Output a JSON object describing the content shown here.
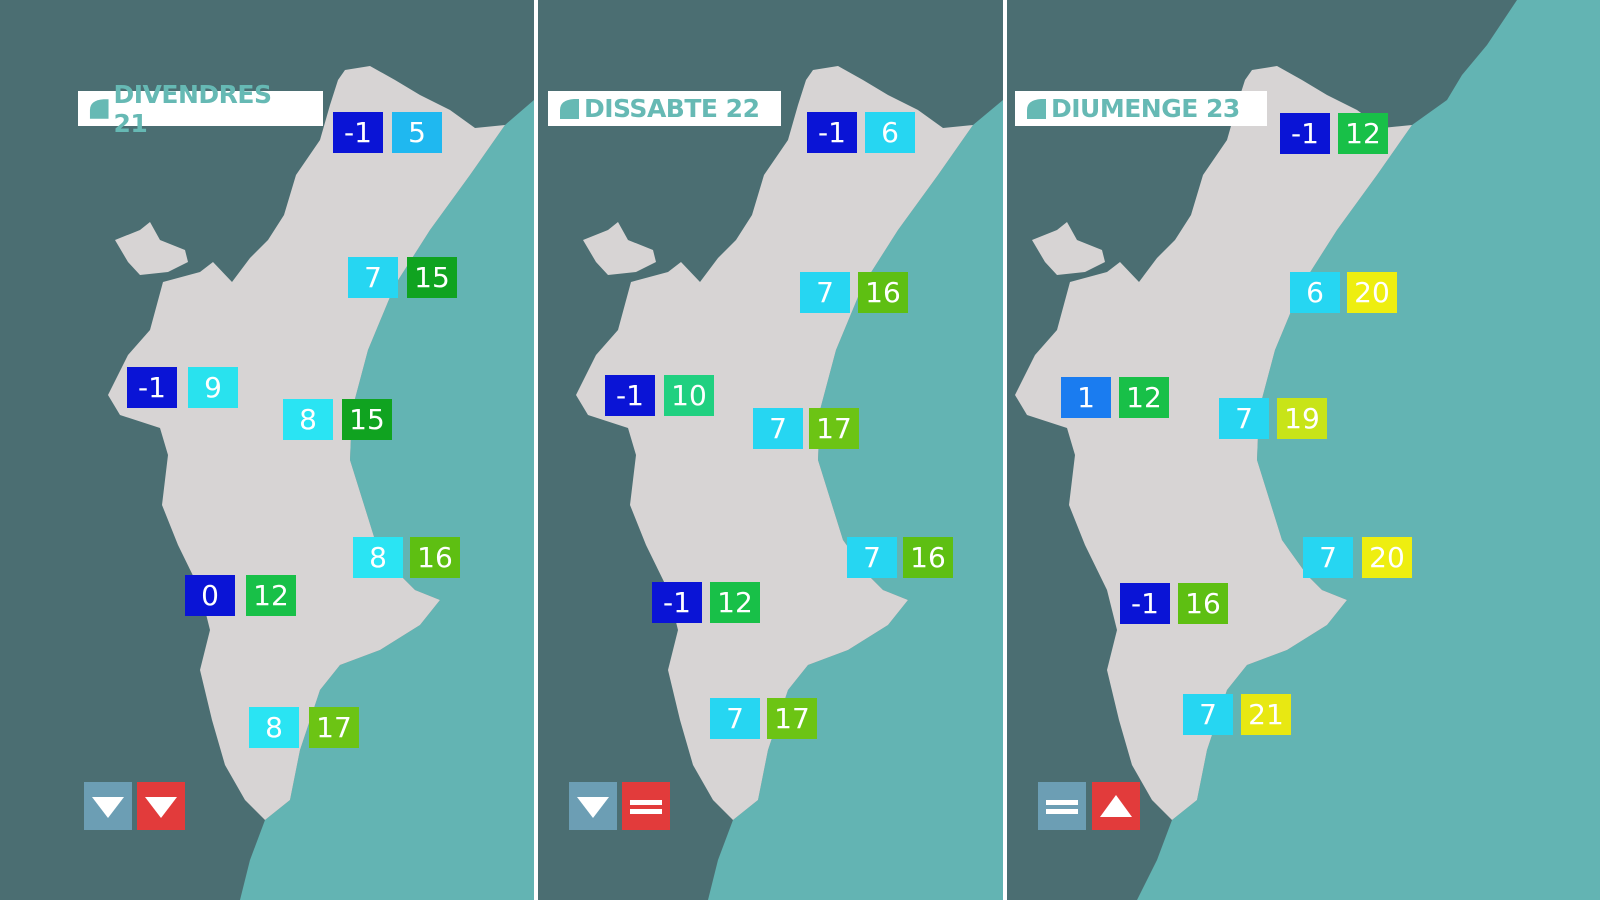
{
  "days": [
    {
      "label": "DIVENDRES 21",
      "trend_min": "down",
      "trend_max": "down",
      "stations": [
        {
          "min": "-1",
          "max": "5",
          "min_color": "#0a14d6",
          "max_color": "#1fb8f0"
        },
        {
          "min": "7",
          "max": "15",
          "min_color": "#26d6f2",
          "max_color": "#10a320"
        },
        {
          "min": "-1",
          "max": "9",
          "min_color": "#0a14d6",
          "max_color": "#29e2ee"
        },
        {
          "min": "8",
          "max": "15",
          "min_color": "#2ae4f3",
          "max_color": "#10a320"
        },
        {
          "min": "8",
          "max": "16",
          "min_color": "#2ae4f3",
          "max_color": "#5ebf12"
        },
        {
          "min": "0",
          "max": "12",
          "min_color": "#0a14d6",
          "max_color": "#18c048"
        },
        {
          "min": "8",
          "max": "17",
          "min_color": "#2ae4f3",
          "max_color": "#6cc414"
        }
      ]
    },
    {
      "label": "DISSABTE 22",
      "trend_min": "down",
      "trend_max": "equal",
      "stations": [
        {
          "min": "-1",
          "max": "6",
          "min_color": "#0a14d6",
          "max_color": "#26d6f2"
        },
        {
          "min": "7",
          "max": "16",
          "min_color": "#26d6f2",
          "max_color": "#5ebf12"
        },
        {
          "min": "-1",
          "max": "10",
          "min_color": "#0a14d6",
          "max_color": "#20d080"
        },
        {
          "min": "7",
          "max": "17",
          "min_color": "#26d6f2",
          "max_color": "#6cc414"
        },
        {
          "min": "7",
          "max": "16",
          "min_color": "#26d6f2",
          "max_color": "#5ebf12"
        },
        {
          "min": "-1",
          "max": "12",
          "min_color": "#0a14d6",
          "max_color": "#18c048"
        },
        {
          "min": "7",
          "max": "17",
          "min_color": "#26d6f2",
          "max_color": "#6cc414"
        }
      ]
    },
    {
      "label": "DIUMENGE 23",
      "trend_min": "equal",
      "trend_max": "up",
      "stations": [
        {
          "min": "-1",
          "max": "12",
          "min_color": "#0a14d6",
          "max_color": "#18c048"
        },
        {
          "min": "6",
          "max": "20",
          "min_color": "#26d6f2",
          "max_color": "#eeee10"
        },
        {
          "min": "1",
          "max": "12",
          "min_color": "#1a7cf0",
          "max_color": "#18c048"
        },
        {
          "min": "7",
          "max": "19",
          "min_color": "#26d6f2",
          "max_color": "#c8e418"
        },
        {
          "min": "7",
          "max": "20",
          "min_color": "#26d6f2",
          "max_color": "#eeee10"
        },
        {
          "min": "-1",
          "max": "16",
          "min_color": "#0a14d6",
          "max_color": "#5ebf12"
        },
        {
          "min": "7",
          "max": "21",
          "min_color": "#26d6f2",
          "max_color": "#e8e812"
        }
      ]
    }
  ],
  "colors": {
    "land": "#d7d4d4",
    "inland": "#4b6e72",
    "sea": "#63b4b3",
    "trend_min": "#6c9eb4",
    "trend_max": "#e23b3b",
    "label_text": "#66b9b4"
  },
  "icons": {
    "label_logo": "leaf-logo-icon",
    "down": "triangle-down-icon",
    "up": "triangle-up-icon",
    "equal": "equal-icon"
  }
}
